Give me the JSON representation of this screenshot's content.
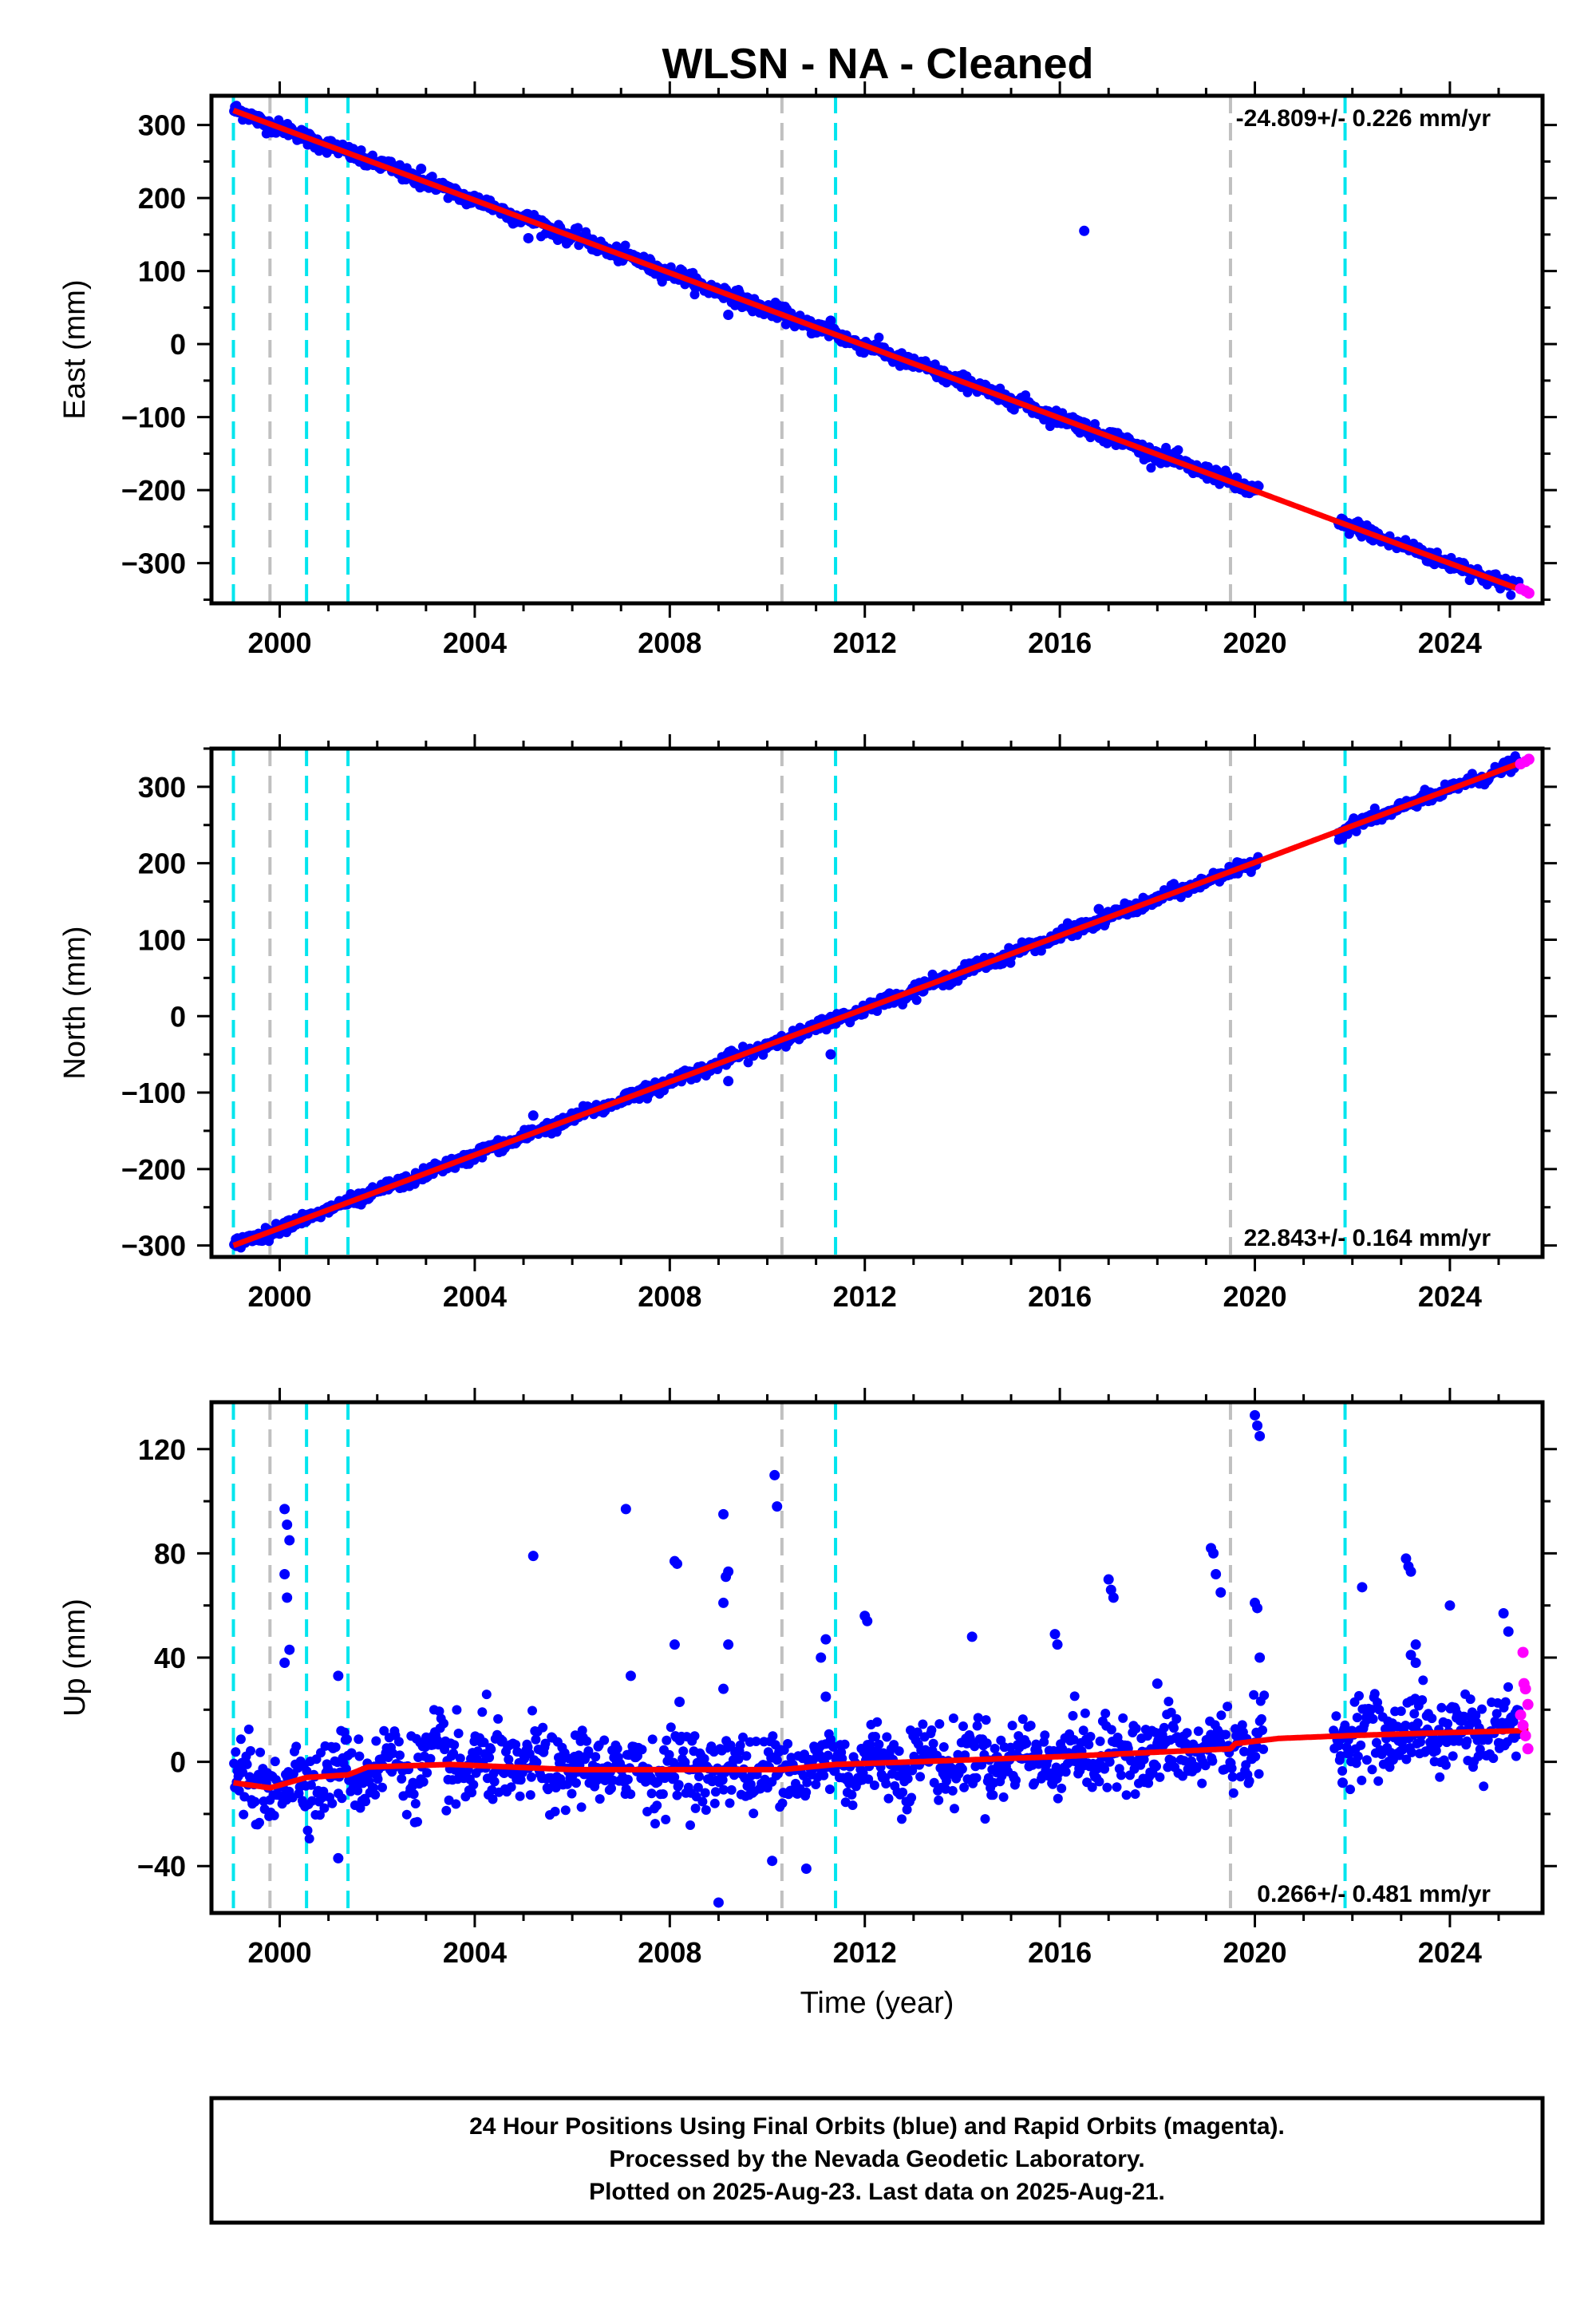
{
  "title": "WLSN  - NA - Cleaned",
  "footer": {
    "lines": [
      "24 Hour Positions Using Final Orbits (blue) and Rapid Orbits (magenta).",
      "Processed by the Nevada Geodetic Laboratory.",
      "Plotted on 2025-Aug-23. Last data on 2025-Aug-21."
    ]
  },
  "colors": {
    "final_orbits": "#0000ff",
    "rapid_orbits": "#ff00ff",
    "model_fit": "#ff0000",
    "equipment_change_line": "#00e5ee",
    "other_event_line": "#c0c0c0"
  },
  "chart_data": [
    {
      "type": "scatter",
      "component": "east",
      "ylabel": "East (mm)",
      "xlabel": "",
      "xlim": [
        1998.6,
        2025.9
      ],
      "ylim": [
        -355,
        340
      ],
      "xticks": [
        2000,
        2004,
        2008,
        2012,
        2016,
        2020,
        2024
      ],
      "yticks": [
        -300,
        -200,
        -100,
        0,
        100,
        200,
        300
      ],
      "rate_label": "-24.809+/- 0.226 mm/yr",
      "rate_position": "top-right",
      "cyan_event_years": [
        1999.05,
        2000.55,
        2001.4,
        2011.4,
        2021.85
      ],
      "gray_event_years": [
        1999.8,
        2010.3,
        2019.5
      ],
      "trend": {
        "start": [
          1999.05,
          320
        ],
        "end": [
          2025.6,
          -340
        ]
      },
      "gaps": [
        [
          2020.1,
          2021.7
        ]
      ],
      "scatter_sigma": 5,
      "outliers": [
        [
          2002.9,
          240
        ],
        [
          2003.2,
          215
        ],
        [
          2005.1,
          145
        ],
        [
          2009.2,
          40
        ],
        [
          2011.3,
          32
        ],
        [
          2016.5,
          155
        ]
      ],
      "rapid": [
        [
          2025.45,
          -335
        ],
        [
          2025.55,
          -338
        ],
        [
          2025.62,
          -341
        ]
      ],
      "model_series": "Model fit"
    },
    {
      "type": "scatter",
      "component": "north",
      "ylabel": "North (mm)",
      "xlabel": "",
      "xlim": [
        1998.6,
        2025.9
      ],
      "ylim": [
        -315,
        350
      ],
      "xticks": [
        2000,
        2004,
        2008,
        2012,
        2016,
        2020,
        2024
      ],
      "yticks": [
        -300,
        -200,
        -100,
        0,
        100,
        200,
        300
      ],
      "rate_label": "22.843+/- 0.164 mm/yr",
      "rate_position": "bottom-right",
      "cyan_event_years": [
        1999.05,
        2000.55,
        2001.4,
        2011.4,
        2021.85
      ],
      "gray_event_years": [
        1999.8,
        2010.3,
        2019.5
      ],
      "trend": {
        "start": [
          1999.05,
          -300
        ],
        "end": [
          2025.6,
          335
        ]
      },
      "gaps": [
        [
          2020.1,
          2021.7
        ]
      ],
      "scatter_sigma": 4,
      "outliers": [
        [
          2001.6,
          -245
        ],
        [
          2005.2,
          -130
        ],
        [
          2009.2,
          -85
        ],
        [
          2011.3,
          -50
        ],
        [
          2016.8,
          140
        ]
      ],
      "rapid": [
        [
          2025.45,
          330
        ],
        [
          2025.55,
          333
        ],
        [
          2025.62,
          336
        ]
      ],
      "model_series": "Model fit"
    },
    {
      "type": "scatter",
      "component": "up",
      "ylabel": "Up (mm)",
      "xlabel": "Time (year)",
      "xlim": [
        1998.6,
        2025.9
      ],
      "ylim": [
        -58,
        138
      ],
      "xticks": [
        2000,
        2004,
        2008,
        2012,
        2016,
        2020,
        2024
      ],
      "yticks": [
        -40,
        0,
        40,
        80,
        120
      ],
      "rate_label": "0.266+/- 0.481 mm/yr",
      "rate_position": "bottom-right",
      "cyan_event_years": [
        1999.05,
        2000.55,
        2001.4,
        2011.4,
        2021.85
      ],
      "gray_event_years": [
        1999.8,
        2010.3,
        2019.5
      ],
      "model": [
        [
          1999.05,
          -8
        ],
        [
          1999.8,
          -10
        ],
        [
          2000.55,
          -6
        ],
        [
          2001.4,
          -5
        ],
        [
          2001.8,
          -2
        ],
        [
          2003.5,
          -1
        ],
        [
          2006,
          -3
        ],
        [
          2008,
          -3
        ],
        [
          2010.3,
          -3
        ],
        [
          2011.4,
          -1
        ],
        [
          2013,
          0
        ],
        [
          2016,
          2
        ],
        [
          2019.5,
          5
        ],
        [
          2019.6,
          7
        ],
        [
          2020.5,
          9
        ],
        [
          2021.85,
          10
        ],
        [
          2023.5,
          11
        ],
        [
          2025.6,
          12
        ]
      ],
      "gaps": [
        [
          2020.2,
          2021.6
        ]
      ],
      "scatter_sigma": 7,
      "outliers": [
        [
          2000.1,
          97
        ],
        [
          2000.15,
          91
        ],
        [
          2000.2,
          85
        ],
        [
          2000.1,
          72
        ],
        [
          2000.15,
          63
        ],
        [
          2000.2,
          43
        ],
        [
          2000.1,
          38
        ],
        [
          2001.2,
          33
        ],
        [
          2001.2,
          -37
        ],
        [
          2005.2,
          79
        ],
        [
          2007.1,
          97
        ],
        [
          2007.2,
          33
        ],
        [
          2008.1,
          77
        ],
        [
          2008.15,
          76
        ],
        [
          2008.1,
          45
        ],
        [
          2008.2,
          23
        ],
        [
          2009.1,
          95
        ],
        [
          2009.2,
          73
        ],
        [
          2009.15,
          71
        ],
        [
          2009.1,
          61
        ],
        [
          2009.2,
          45
        ],
        [
          2009.1,
          28
        ],
        [
          2009.0,
          -54
        ],
        [
          2010.15,
          110
        ],
        [
          2010.2,
          98
        ],
        [
          2010.1,
          -38
        ],
        [
          2011.2,
          47
        ],
        [
          2011.1,
          40
        ],
        [
          2011.2,
          25
        ],
        [
          2010.8,
          -41
        ],
        [
          2012.0,
          56
        ],
        [
          2012.05,
          54
        ],
        [
          2014.2,
          48
        ],
        [
          2015.9,
          49
        ],
        [
          2015.95,
          45
        ],
        [
          2017.0,
          70
        ],
        [
          2017.05,
          66
        ],
        [
          2017.1,
          63
        ],
        [
          2018.0,
          30
        ],
        [
          2019.1,
          82
        ],
        [
          2019.15,
          80
        ],
        [
          2019.2,
          72
        ],
        [
          2019.3,
          65
        ],
        [
          2020.0,
          133
        ],
        [
          2020.05,
          129
        ],
        [
          2020.1,
          125
        ],
        [
          2020.0,
          61
        ],
        [
          2020.05,
          59
        ],
        [
          2020.1,
          40
        ],
        [
          2021.8,
          -8
        ],
        [
          2022.2,
          67
        ],
        [
          2023.1,
          78
        ],
        [
          2023.15,
          75
        ],
        [
          2023.2,
          73
        ],
        [
          2023.3,
          45
        ],
        [
          2023.2,
          41
        ],
        [
          2023.3,
          38
        ],
        [
          2024.0,
          60
        ],
        [
          2025.1,
          57
        ],
        [
          2025.2,
          50
        ]
      ],
      "rapid": [
        [
          2025.5,
          42
        ],
        [
          2025.52,
          30
        ],
        [
          2025.55,
          28
        ],
        [
          2025.6,
          22
        ],
        [
          2025.45,
          18
        ],
        [
          2025.5,
          14
        ],
        [
          2025.55,
          10
        ],
        [
          2025.6,
          5
        ]
      ],
      "model_series": "Model fit"
    }
  ]
}
